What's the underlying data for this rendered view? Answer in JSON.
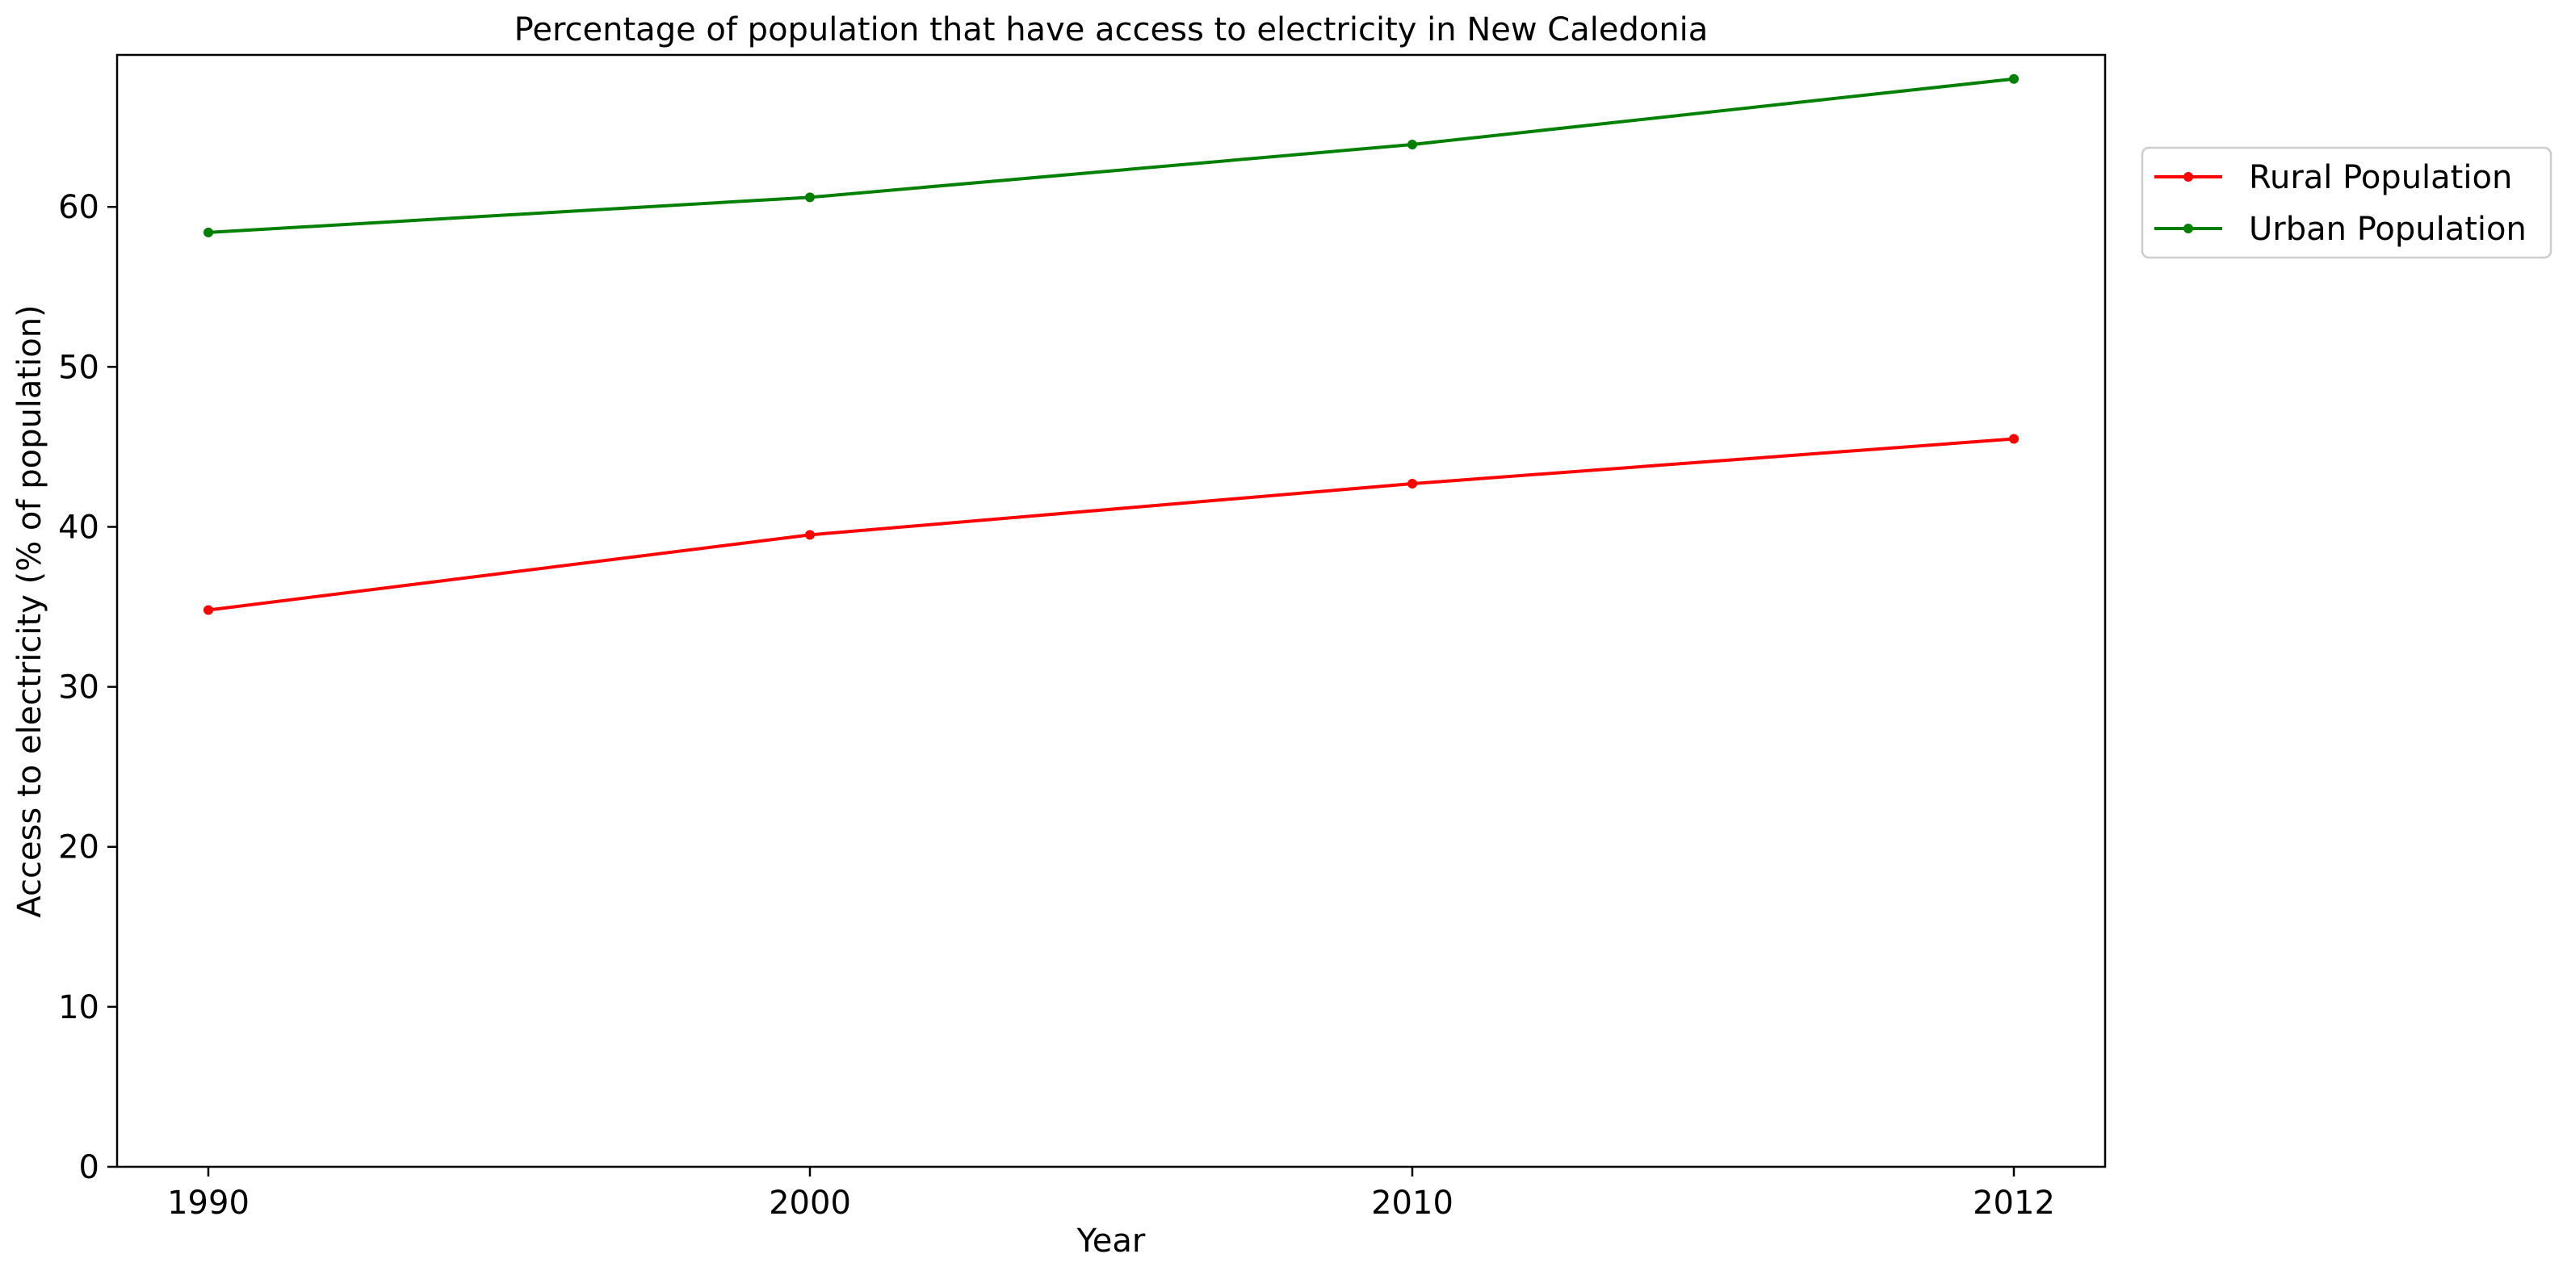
{
  "chart_data": {
    "type": "line",
    "title": "Percentage of population that have access to electricity in New Caledonia",
    "xlabel": "Year",
    "ylabel": "Access to electricity (% of population)",
    "categories": [
      "1990",
      "2000",
      "2010",
      "2012"
    ],
    "ylim": [
      0,
      69.5
    ],
    "yticks": [
      0,
      10,
      20,
      30,
      40,
      50,
      60
    ],
    "grid": false,
    "legend_position": "upper right, outside plot area",
    "series": [
      {
        "name": "Rural Population",
        "color": "#ff0000",
        "marker": "dot",
        "values": [
          34.8,
          39.5,
          42.7,
          45.5
        ]
      },
      {
        "name": "Urban Population",
        "color": "#008000",
        "marker": "dot",
        "values": [
          58.4,
          60.6,
          63.9,
          68.0
        ]
      }
    ]
  }
}
